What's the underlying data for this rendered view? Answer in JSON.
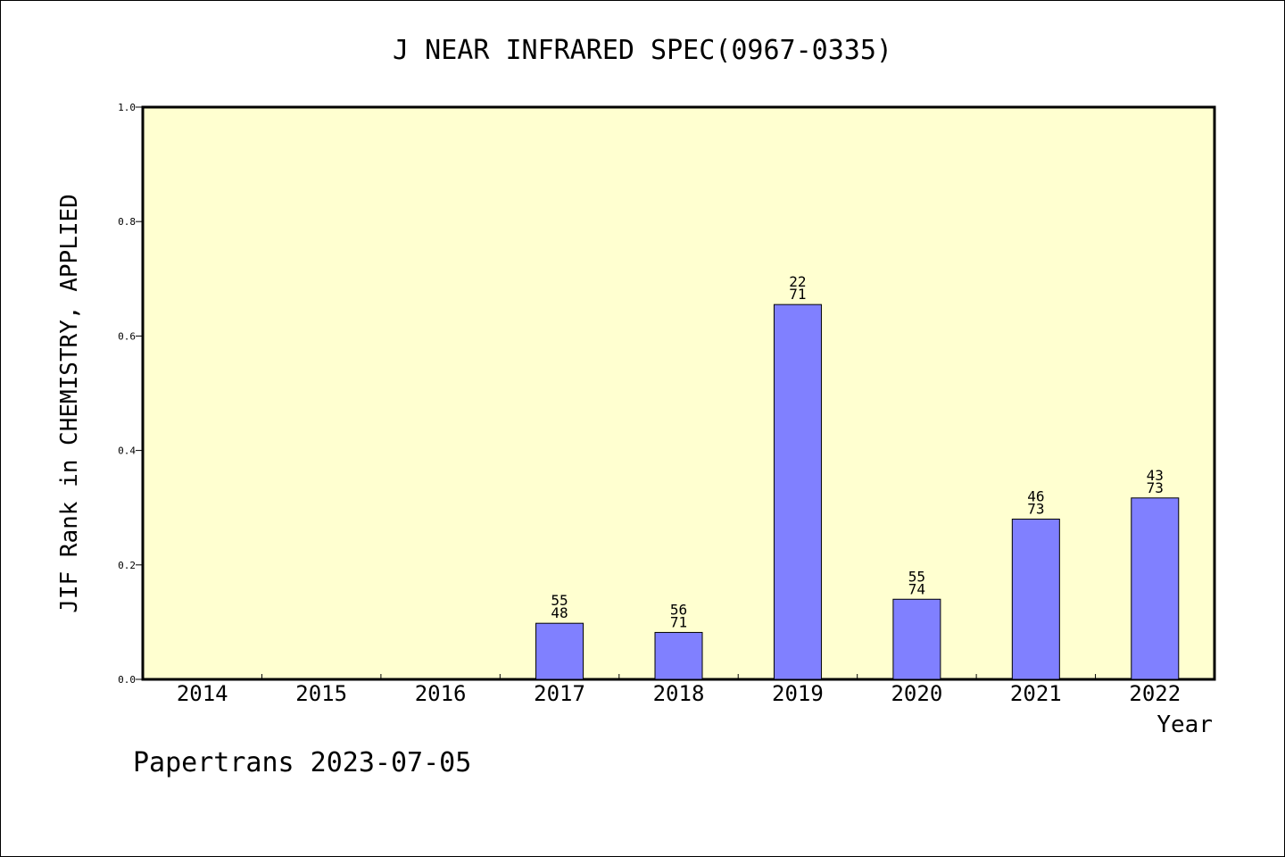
{
  "footer": "Papertrans 2023-07-05",
  "chart_data": {
    "type": "bar",
    "title": "J NEAR INFRARED SPEC(0967-0335)",
    "xlabel": "Year",
    "ylabel": "JIF Rank in CHEMISTRY, APPLIED",
    "categories": [
      "2014",
      "2015",
      "2016",
      "2017",
      "2018",
      "2019",
      "2020",
      "2021",
      "2022"
    ],
    "values": [
      null,
      null,
      null,
      0.098,
      0.082,
      0.655,
      0.14,
      0.28,
      0.317
    ],
    "label_top": [
      null,
      null,
      null,
      "55",
      "56",
      "22",
      "55",
      "46",
      "43"
    ],
    "label_bottom": [
      null,
      null,
      null,
      "48",
      "71",
      "71",
      "74",
      "73",
      "73"
    ],
    "ylim": [
      0,
      1.0
    ],
    "yticks": [
      "0.0",
      "0.2",
      "0.4",
      "0.6",
      "0.8",
      "1.0"
    ],
    "grid": false,
    "legend": "none",
    "colors": {
      "plot_background": "#ffffd0",
      "bar_fill": "#8080ff",
      "bar_stroke": "#000000"
    }
  }
}
